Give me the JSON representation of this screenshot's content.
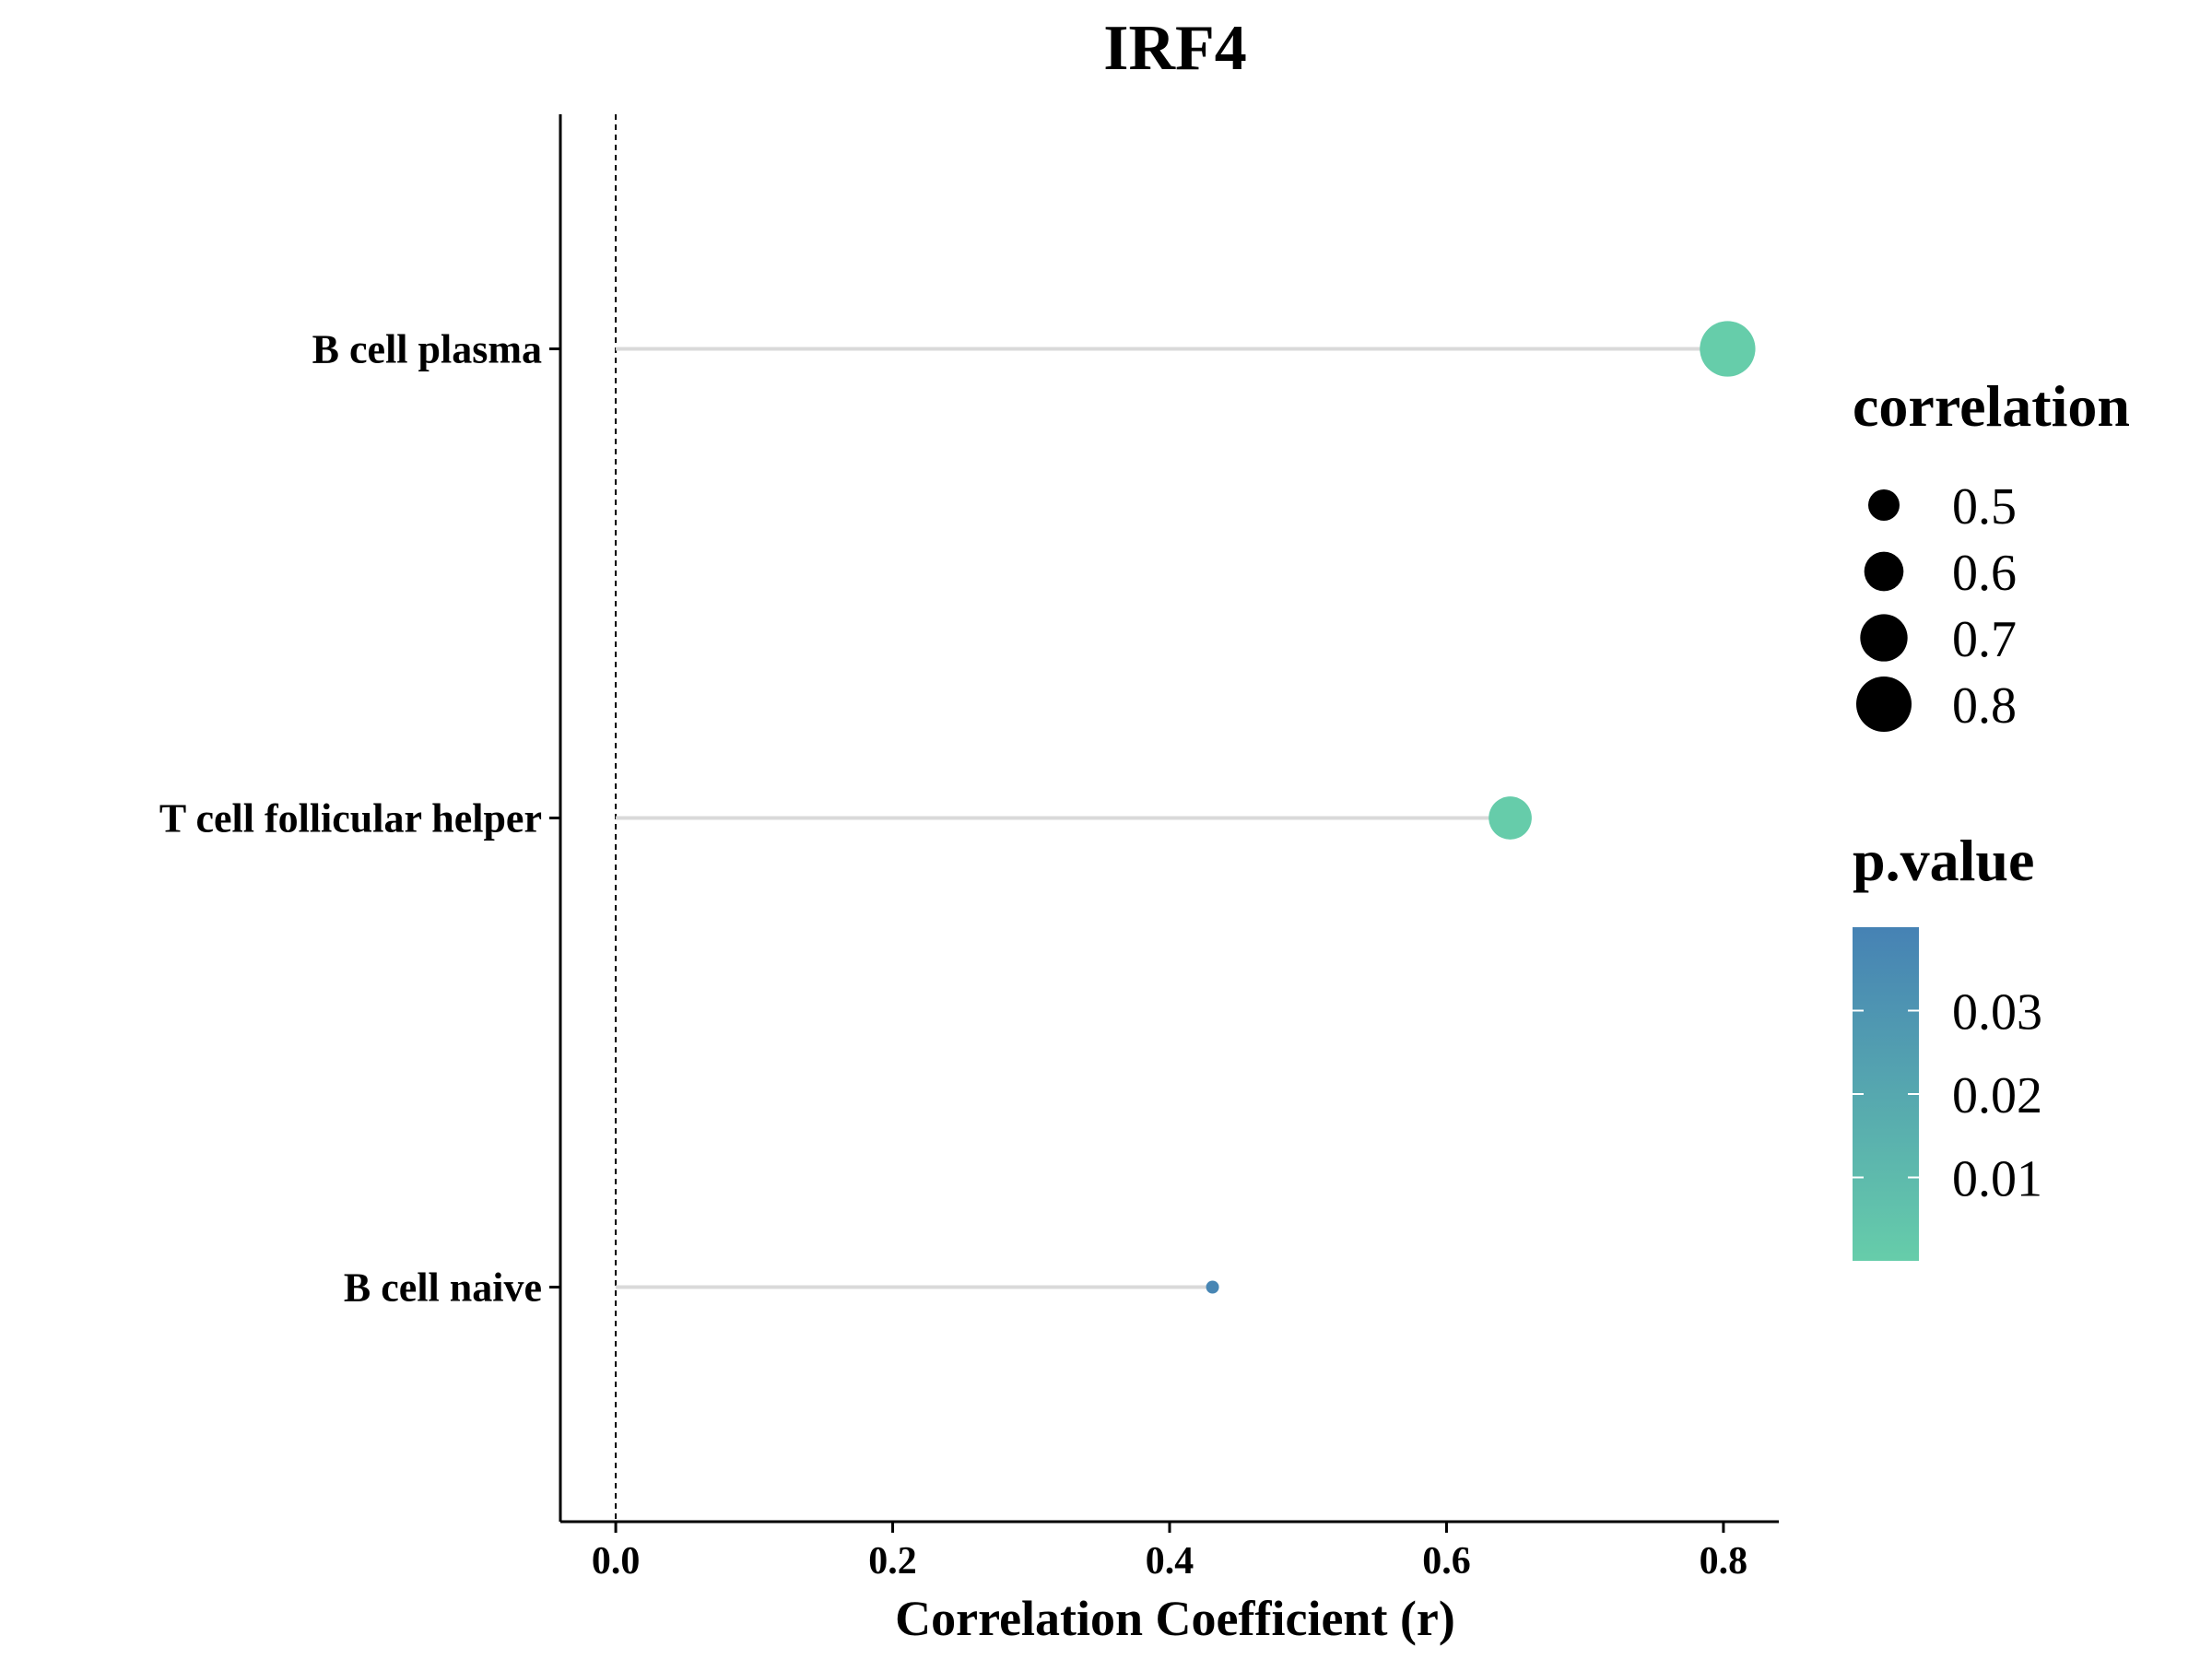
{
  "chart_data": {
    "type": "lollipop",
    "title": "IRF4",
    "xlabel": "Correlation Coefficient (r)",
    "ylabel": "",
    "xlim": [
      -0.04,
      0.84
    ],
    "x_ticks": [
      0.0,
      0.2,
      0.4,
      0.6,
      0.8
    ],
    "x_tick_labels": [
      "0.0",
      "0.2",
      "0.4",
      "0.6",
      "0.8"
    ],
    "reference_line_x": 0.0,
    "categories": [
      "B cell plasma",
      "T cell follicular helper",
      "B cell naive"
    ],
    "correlation": [
      0.803,
      0.646,
      0.431
    ],
    "p_value": [
      0.0001,
      0.0003,
      0.038
    ],
    "legend_size": {
      "title": "correlation",
      "breaks": [
        0.5,
        0.6,
        0.7,
        0.8
      ],
      "labels": [
        "0.5",
        "0.6",
        "0.7",
        "0.8"
      ]
    },
    "legend_color": {
      "title": "p.value",
      "breaks": [
        0.03,
        0.02,
        0.01
      ],
      "labels": [
        "0.03",
        "0.02",
        "0.01"
      ],
      "range": [
        0.0,
        0.04
      ],
      "low_color": "#66CDAA",
      "high_color": "#4682B4"
    },
    "colors": {
      "segment": "#d9d9d9",
      "axis": "#000000",
      "text": "#000000"
    }
  }
}
